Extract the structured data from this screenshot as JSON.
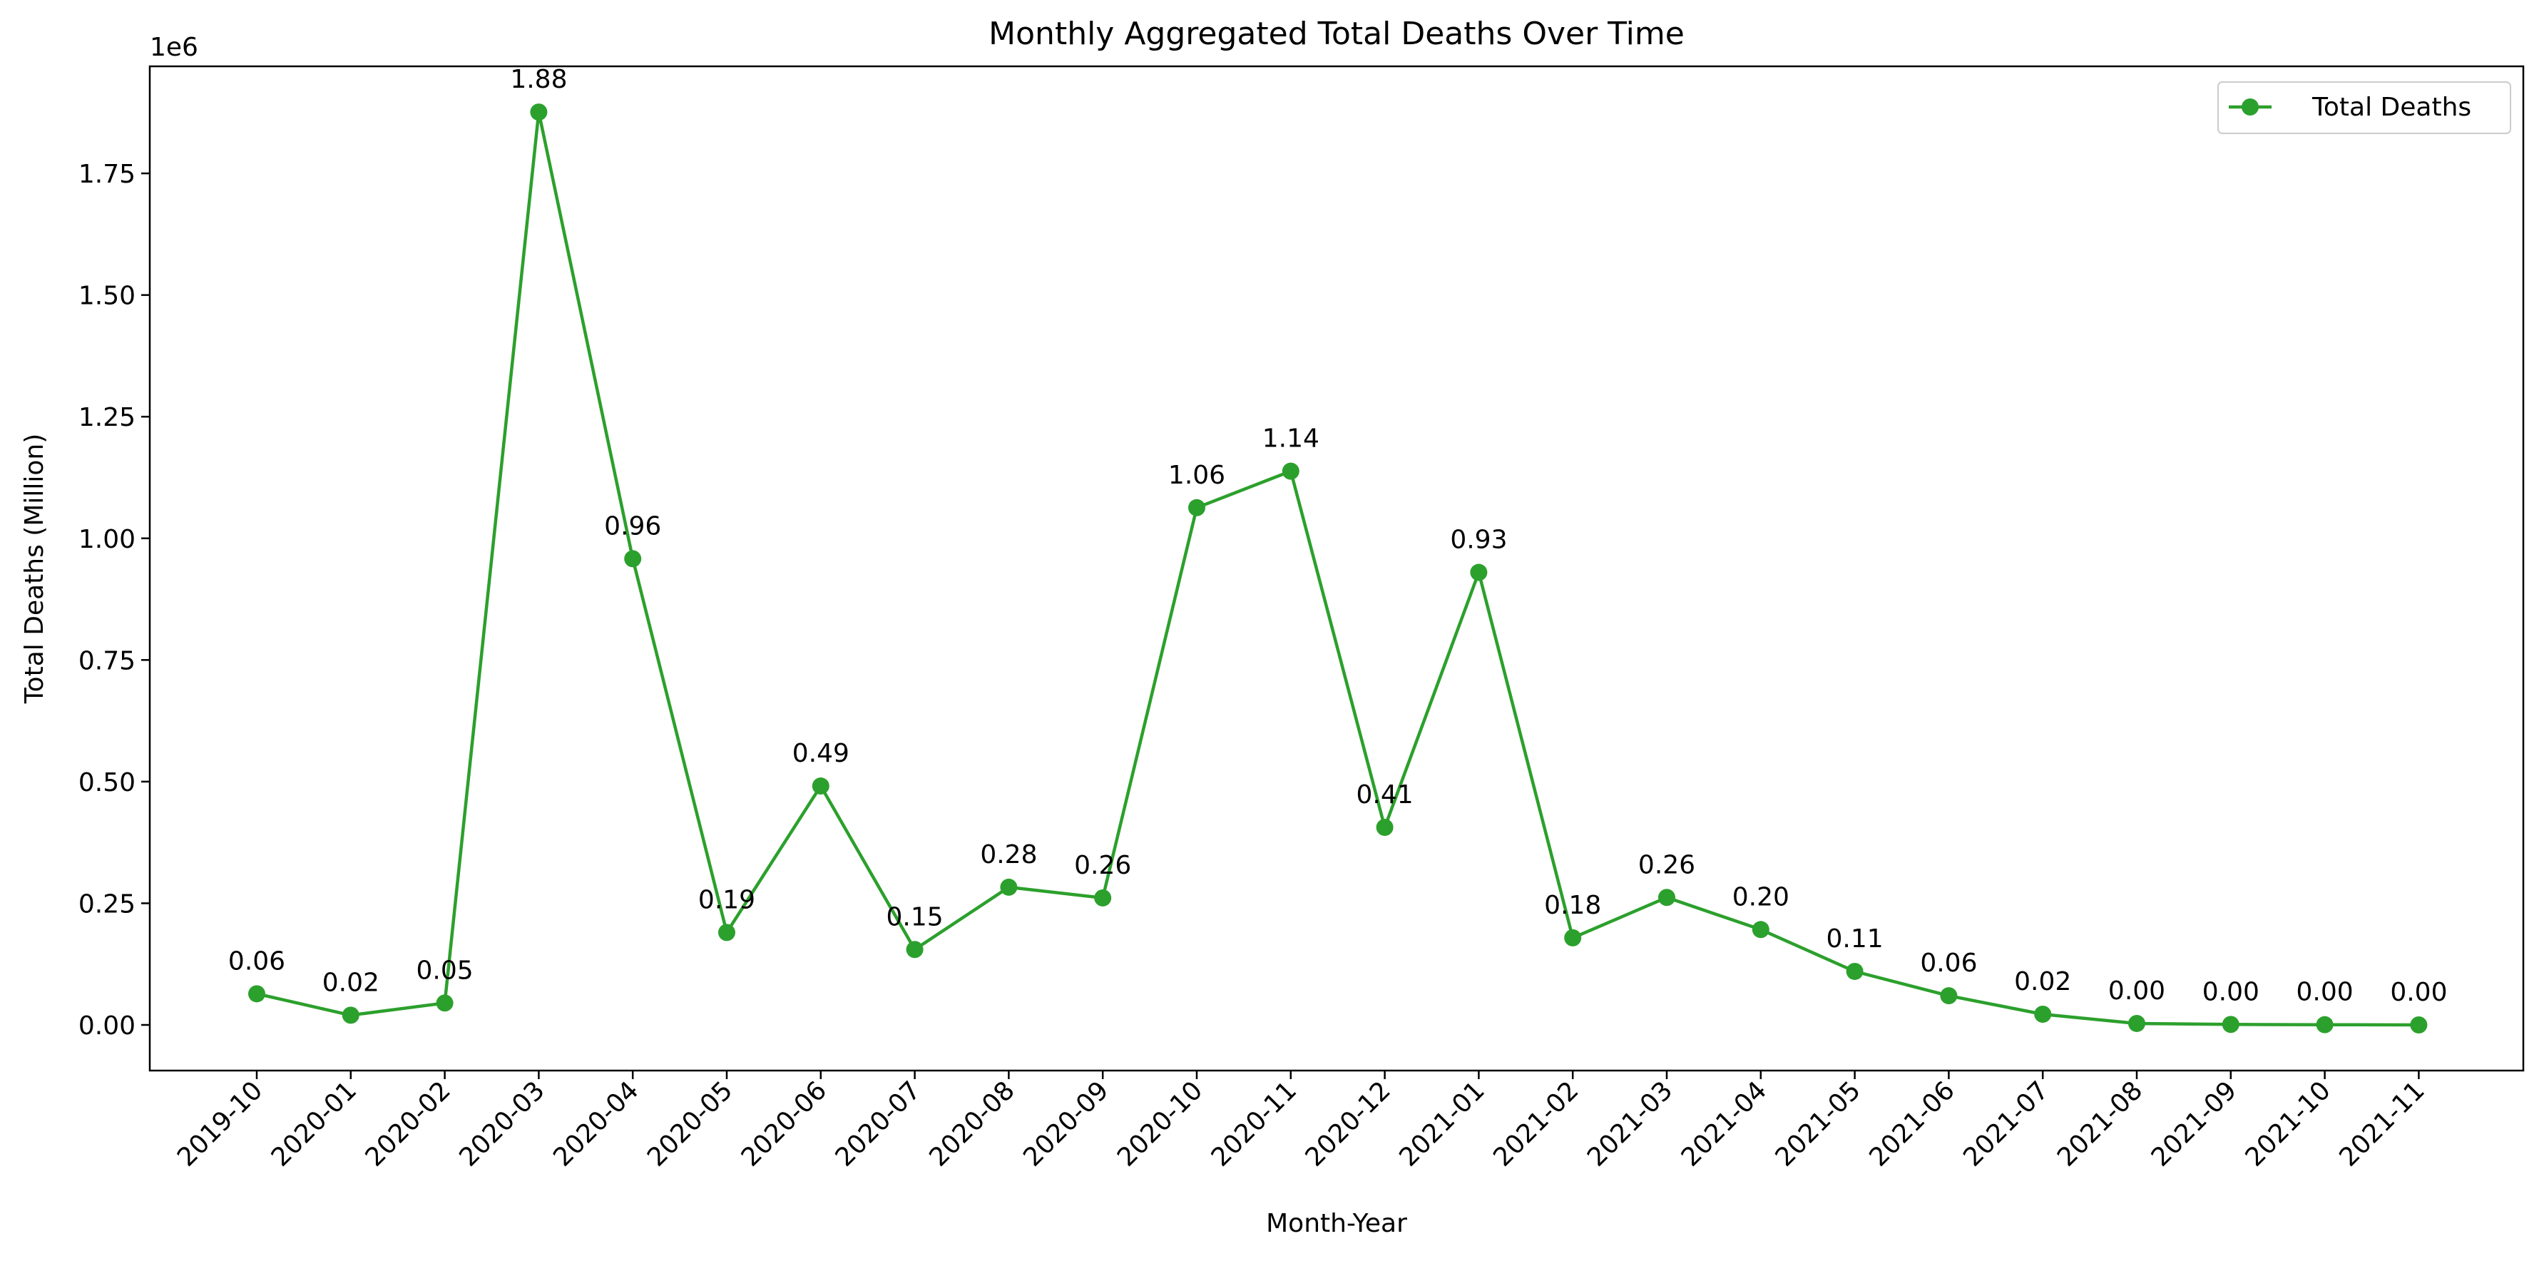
{
  "chart_data": {
    "type": "line",
    "title": "Monthly Aggregated Total Deaths Over Time",
    "xlabel": "Month-Year",
    "ylabel": "Total Deaths (Million)",
    "offset_text": "1e6",
    "categories": [
      "2019-10",
      "2020-01",
      "2020-02",
      "2020-03",
      "2020-04",
      "2020-05",
      "2020-06",
      "2020-07",
      "2020-08",
      "2020-09",
      "2020-10",
      "2020-11",
      "2020-12",
      "2021-01",
      "2021-02",
      "2021-03",
      "2021-04",
      "2021-05",
      "2021-06",
      "2021-07",
      "2021-08",
      "2021-09",
      "2021-10",
      "2021-11"
    ],
    "series": [
      {
        "name": "Total Deaths",
        "color": "#2ca02c",
        "marker": "circle",
        "values": [
          64000,
          20000,
          45000,
          1876000,
          958000,
          190000,
          491000,
          155000,
          283000,
          261000,
          1063000,
          1138000,
          406000,
          930000,
          179000,
          262000,
          196000,
          110000,
          60000,
          22000,
          3000,
          1000,
          500,
          0
        ],
        "labels": [
          "0.06",
          "0.02",
          "0.05",
          "1.88",
          "0.96",
          "0.19",
          "0.49",
          "0.15",
          "0.28",
          "0.26",
          "1.06",
          "1.14",
          "0.41",
          "0.93",
          "0.18",
          "0.26",
          "0.20",
          "0.11",
          "0.06",
          "0.02",
          "0.00",
          "0.00",
          "0.00",
          "0.00"
        ]
      }
    ],
    "yticks": [
      0,
      250000,
      500000,
      750000,
      1000000,
      1250000,
      1500000,
      1750000
    ],
    "ytick_labels": [
      "0.00",
      "0.25",
      "0.50",
      "0.75",
      "1.00",
      "1.25",
      "1.50",
      "1.75"
    ],
    "ylim": [
      -93800,
      1970000
    ],
    "grid": false,
    "legend_position": "upper right"
  }
}
